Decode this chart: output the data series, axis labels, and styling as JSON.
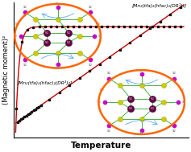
{
  "background_color": "#ffffff",
  "curve1_color": "#cc0000",
  "curve2_color": "#cc0000",
  "dot_color": "#111111",
  "xlabel": "Temperature",
  "ylabel": "(Magnetic moment)²",
  "label1": "[Mn₂(tfa)₂(hfac)₂(DR¹)₂]",
  "label2": "[Mn₂(tfa)₂(hfac)₂(DR²)₂]",
  "xlabel_fontsize": 7.5,
  "ylabel_fontsize": 6.0,
  "orange_border": "#FF6600",
  "mn_color": "#660044",
  "s_color": "#cccc00",
  "radical_color": "#cc00cc",
  "bond_color": "#009900",
  "pink_color": "#ff44aa",
  "af_arrow_color": "#4499ff",
  "fm_color": "#FF6600"
}
